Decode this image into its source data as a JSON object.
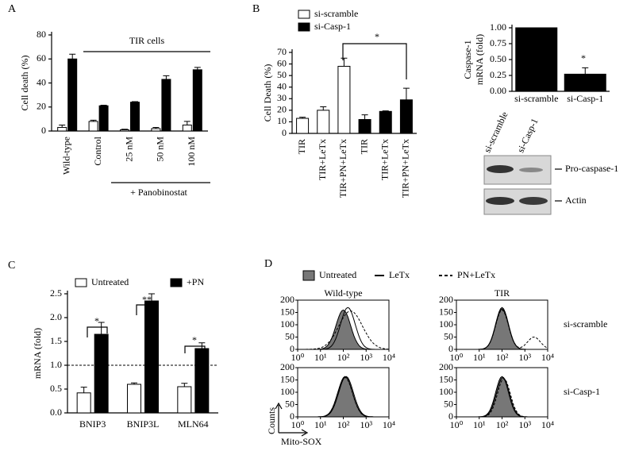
{
  "chart_data": [
    {
      "type": "bar",
      "ylabel": "Cell death (%)",
      "categories": [
        "Wild-type",
        "Control",
        "25 nM",
        "50 nM",
        "100 nM"
      ],
      "series": [
        {
          "color": "#ffffff",
          "values": [
            3,
            8,
            1,
            2,
            5
          ],
          "errors": [
            2,
            1,
            0.5,
            1,
            3
          ]
        },
        {
          "color": "#000000",
          "values": [
            60,
            21,
            24,
            43,
            51
          ],
          "errors": [
            4,
            0.5,
            0.5,
            3,
            2
          ]
        }
      ],
      "ylim": [
        0,
        80
      ],
      "yticks": [
        0,
        20,
        40,
        60,
        80
      ],
      "annotations": [
        "TIR cells",
        "+ Panobinostat"
      ]
    },
    {
      "type": "bar",
      "ylabel": "Cell Death (%)",
      "categories": [
        "TIR",
        "TIR+LeTx",
        "TIR+PN+LeTx",
        "TIR",
        "TIR+LeTx",
        "TIR+PN+LeTx"
      ],
      "series": [
        {
          "name": "si-scramble",
          "color": "#ffffff",
          "values": [
            13,
            20,
            58,
            null,
            null,
            null
          ],
          "errors": [
            1,
            3,
            7,
            null,
            null,
            null
          ]
        },
        {
          "name": "si-Casp-1",
          "color": "#000000",
          "values": [
            null,
            null,
            null,
            12,
            19,
            29
          ],
          "errors": [
            null,
            null,
            null,
            4,
            0.5,
            10
          ]
        }
      ],
      "ylim": [
        0,
        70
      ],
      "yticks": [
        0,
        10,
        20,
        30,
        40,
        50,
        60,
        70
      ],
      "annotations": [
        "*"
      ]
    },
    {
      "type": "bar",
      "ylabel": [
        "Caspase-1",
        "mRNA (fold)"
      ],
      "categories": [
        "si-scramble",
        "si-Casp-1"
      ],
      "series": [
        {
          "color": "#000000",
          "values": [
            1,
            0.27
          ],
          "errors": [
            0,
            0.1
          ]
        }
      ],
      "ylim": [
        0,
        1
      ],
      "yticks": [
        {
          "value": 0,
          "label": "0.00"
        },
        {
          "value": 0.25,
          "label": "0.25"
        },
        {
          "value": 0.5,
          "label": "0.50"
        },
        {
          "value": 0.75,
          "label": "0.75"
        },
        {
          "value": 1,
          "label": "1.00"
        }
      ],
      "annotations": [
        "*"
      ]
    },
    {
      "type": "bar",
      "ylabel": "mRNA (fold)",
      "categories": [
        "BNIP3",
        "BNIP3L",
        "MLN64"
      ],
      "series": [
        {
          "name": "Untreated",
          "color": "#ffffff",
          "values": [
            0.42,
            0.6,
            0.55
          ],
          "errors": [
            0.12,
            0.03,
            0.07
          ]
        },
        {
          "name": "+PN",
          "color": "#000000",
          "values": [
            1.65,
            2.35,
            1.35
          ],
          "errors": [
            0.25,
            0.15,
            0.12
          ]
        }
      ],
      "ylim": [
        0,
        2.5
      ],
      "yticks": [
        {
          "value": 0,
          "label": "0.0"
        },
        0.5,
        {
          "value": 1,
          "label": "1.0"
        },
        1.5,
        {
          "value": 2,
          "label": "2.0"
        },
        2.5
      ],
      "reference_line": 1,
      "annotations": [
        "*",
        "**",
        "*"
      ]
    }
  ],
  "panel_letters": [
    "A",
    "B",
    "C",
    "D"
  ],
  "blot": {
    "lanes": [
      "si-scramble",
      "si-Casp-1"
    ],
    "bands": [
      "Pro-caspase-1",
      "Actin"
    ]
  },
  "flow": {
    "legend": [
      "Untreated",
      "LeTx",
      "PN+LeTx"
    ],
    "columns": [
      "Wild-type",
      "TIR"
    ],
    "rows": [
      "si-scramble",
      "si-Casp-1"
    ],
    "ylim": [
      0,
      200
    ],
    "yticks": [
      0,
      50,
      100,
      150,
      200
    ],
    "xlim": [
      1,
      10000
    ],
    "xticks": [
      {
        "value": 1,
        "label": "10⁰"
      },
      {
        "value": 10,
        "label": "10¹"
      },
      {
        "value": 100,
        "label": "10²"
      },
      {
        "value": 1000,
        "label": "10³"
      },
      {
        "value": 10000,
        "label": "10⁴"
      }
    ],
    "ylabel": "Counts",
    "xlabel": "Mito-SOX"
  }
}
